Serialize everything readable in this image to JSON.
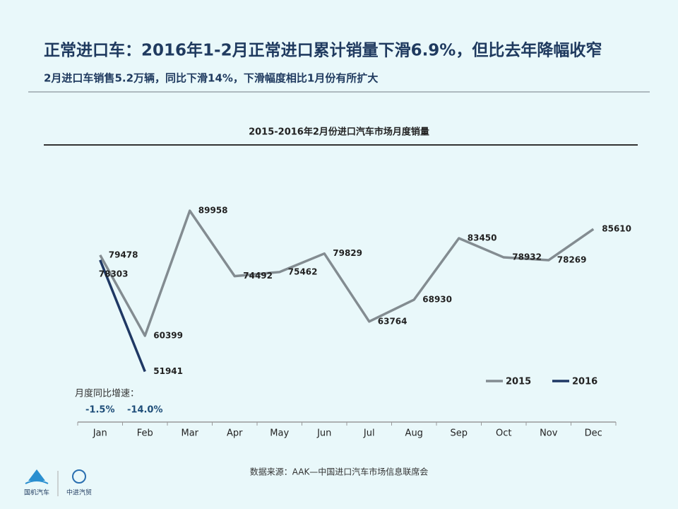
{
  "header": {
    "title": "正常进口车：2016年1-2月正常进口累计销量下滑6.9%，但比去年降幅收窄",
    "subtitle": "2月进口车销售5.2万辆，同比下滑14%，下滑幅度相比1月份有所扩大"
  },
  "chart_data": {
    "type": "line",
    "title": "2015-2016年2月份进口汽车市场月度销量",
    "categories": [
      "Jan",
      "Feb",
      "Mar",
      "Apr",
      "May",
      "Jun",
      "Jul",
      "Aug",
      "Sep",
      "Oct",
      "Nov",
      "Dec"
    ],
    "series": [
      {
        "name": "2015",
        "color": "#838c91",
        "values": [
          79478,
          60399,
          89958,
          74492,
          75462,
          79829,
          63764,
          68930,
          83450,
          78932,
          78269,
          85610
        ]
      },
      {
        "name": "2016",
        "color": "#1f3864",
        "values": [
          78303,
          51941,
          null,
          null,
          null,
          null,
          null,
          null,
          null,
          null,
          null,
          null
        ]
      }
    ],
    "ylim": [
      40000,
      100000
    ],
    "legend": "bottom-right",
    "annotation": {
      "label": "月度同比增速：",
      "values": [
        "-1.5%",
        "-14.0%"
      ]
    }
  },
  "footer": {
    "source": "数据来源：AAK—中国进口汽车市场信息联席会",
    "logos": [
      "国机汽车",
      "中进汽贸"
    ]
  }
}
